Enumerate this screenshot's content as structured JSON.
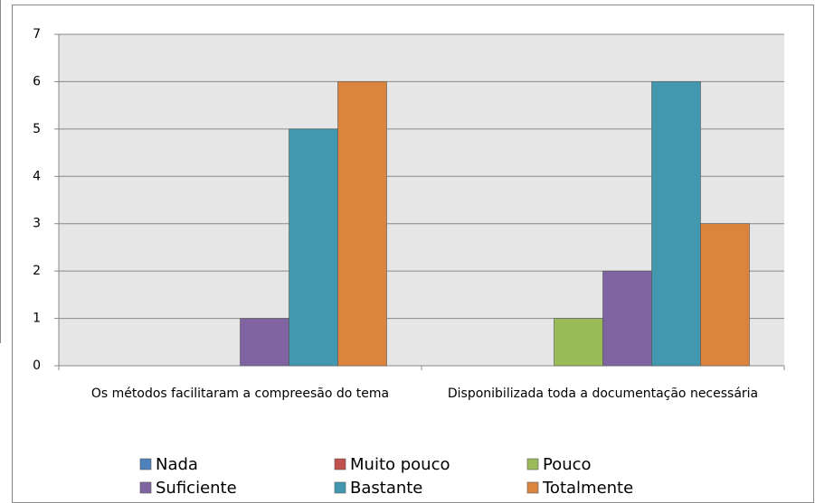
{
  "chart_data": {
    "type": "bar",
    "categories": [
      "Os métodos facilitaram a compreesão do tema",
      "Disponibilizada toda a documentação necessária"
    ],
    "series": [
      {
        "name": "Nada",
        "color": "#4f81bd",
        "values": [
          0,
          0
        ]
      },
      {
        "name": "Muito pouco",
        "color": "#c0504d",
        "values": [
          0,
          0
        ]
      },
      {
        "name": "Pouco",
        "color": "#9bbb59",
        "values": [
          0,
          1
        ]
      },
      {
        "name": "Suficiente",
        "color": "#8064a2",
        "values": [
          1,
          2
        ]
      },
      {
        "name": "Bastante",
        "color": "#4198af",
        "values": [
          5,
          6
        ]
      },
      {
        "name": "Totalmente",
        "color": "#db843d",
        "values": [
          6,
          3
        ]
      }
    ],
    "ylim": [
      0,
      7
    ],
    "yticks": [
      0,
      1,
      2,
      3,
      4,
      5,
      6,
      7
    ],
    "grid": true,
    "legend": "bottom"
  }
}
